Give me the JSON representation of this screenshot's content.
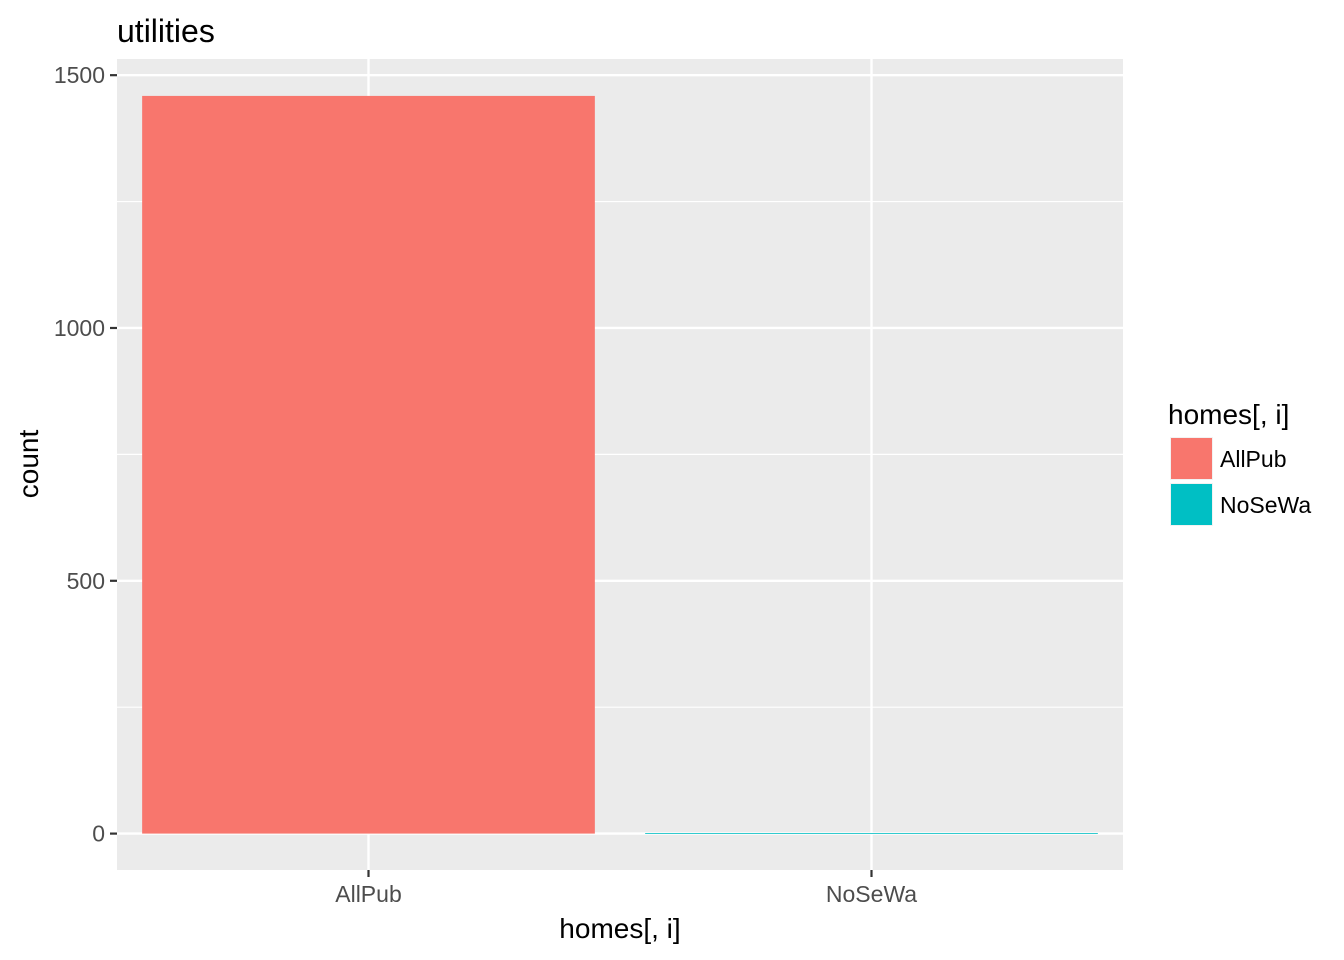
{
  "chart_data": {
    "type": "bar",
    "title": "utilities",
    "xlabel": "homes[, i]",
    "ylabel": "count",
    "categories": [
      "AllPub",
      "NoSeWa"
    ],
    "values": [
      1459,
      1
    ],
    "ylim": [
      -72,
      1532
    ],
    "yticks": [
      0,
      500,
      1000,
      1500
    ],
    "ytick_labels": [
      "0",
      "500",
      "1000",
      "1500"
    ],
    "grid": true,
    "legend": {
      "title": "homes[, i]",
      "position": "right",
      "entries": [
        "AllPub",
        "NoSeWa"
      ]
    },
    "colors": [
      "#F8766D",
      "#00BFC4"
    ],
    "panel_background": "#EBEBEB",
    "grid_color": "#FFFFFF"
  }
}
